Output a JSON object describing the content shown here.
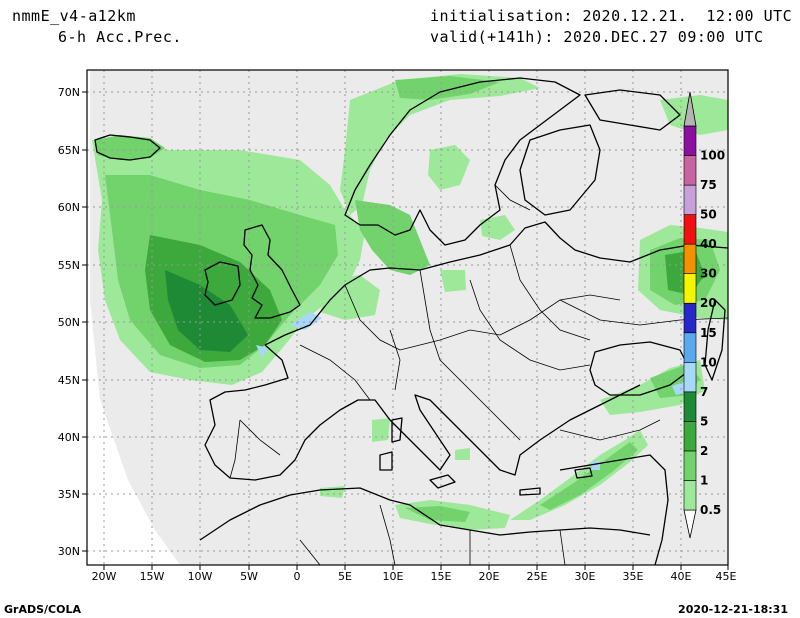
{
  "header": {
    "model": "nmmE_v4-a12km",
    "field": "6-h Acc.Prec.",
    "initialisation": "initialisation: 2020.12.21.  12:00 UTC",
    "valid": "valid(+141h): 2020.DEC.27 09:00 UTC"
  },
  "footer": {
    "left": "GrADS/COLA",
    "right": "2020-12-21-18:31"
  },
  "axes": {
    "lon_labels": [
      "20W",
      "15W",
      "10W",
      "5W",
      "0",
      "5E",
      "10E",
      "15E",
      "20E",
      "25E",
      "30E",
      "35E",
      "40E",
      "45E"
    ],
    "lat_labels": [
      "70N",
      "65N",
      "60N",
      "55N",
      "50N",
      "45N",
      "40N",
      "35N",
      "30N"
    ]
  },
  "legend": {
    "unit_levels": [
      "0.5",
      "1",
      "2",
      "5",
      "7",
      "10",
      "15",
      "20",
      "30",
      "40",
      "50",
      "75",
      "100"
    ],
    "colors": [
      "#9ee89a",
      "#72d26c",
      "#3da83c",
      "#1f8a35",
      "#a8d8f8",
      "#5aa8ee",
      "#2828c8",
      "#f5f500",
      "#f59000",
      "#f01010",
      "#c8a0d8",
      "#c864a0",
      "#8c10a0",
      "#b4b4b4"
    ]
  },
  "map": {
    "colors": {
      "domain": "#ebebeb",
      "light_green": "#9ee89a",
      "green": "#72d26c",
      "mid_green": "#3da83c",
      "dark_green": "#1f8a35",
      "light_blue": "#a8d8f8"
    }
  }
}
